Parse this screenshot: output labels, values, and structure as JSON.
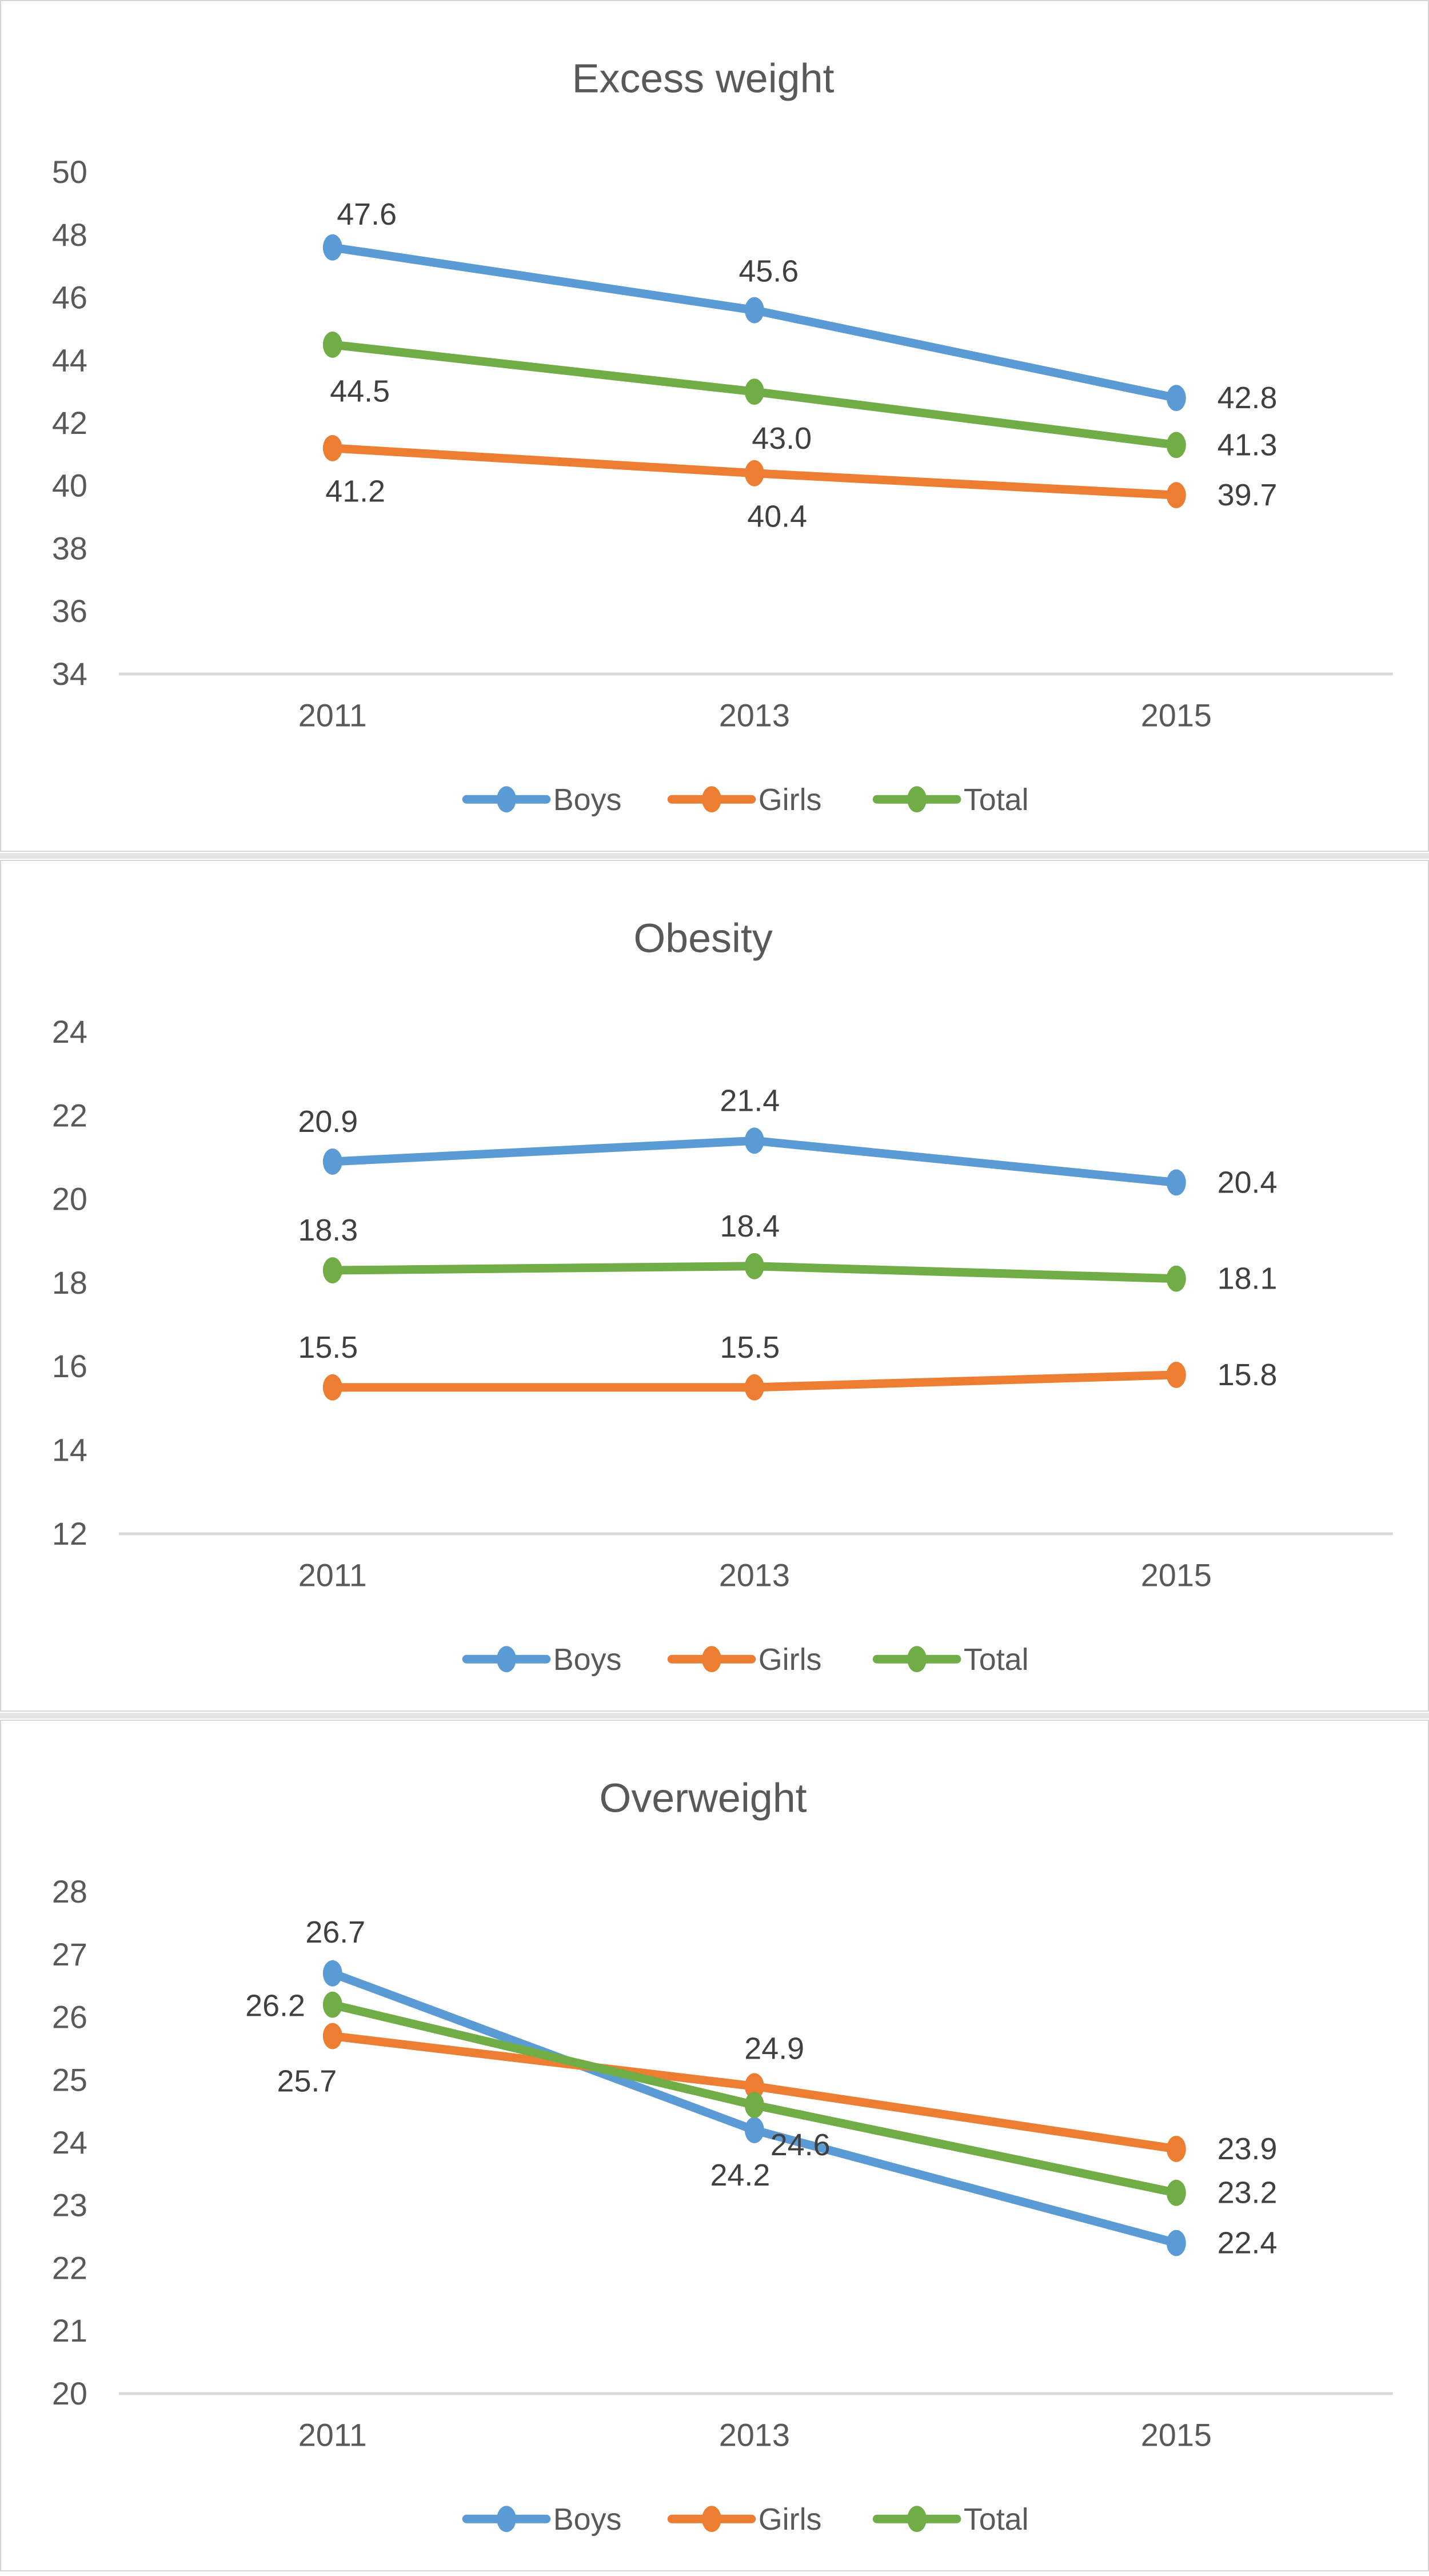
{
  "colors": {
    "boys": "#5B9BD5",
    "girls": "#ED7D31",
    "total": "#70AD47",
    "axis_text": "#595959",
    "data_label": "#404040",
    "axis_line": "#D9D9D9",
    "panel_border": "#D6D6D6"
  },
  "chart_data": [
    {
      "type": "line",
      "title": "Excess weight",
      "categories": [
        "2011",
        "2013",
        "2015"
      ],
      "series": [
        {
          "name": "Boys",
          "color_key": "boys",
          "values": [
            47.6,
            45.6,
            42.8
          ]
        },
        {
          "name": "Girls",
          "color_key": "girls",
          "values": [
            41.2,
            40.4,
            39.7
          ]
        },
        {
          "name": "Total",
          "color_key": "total",
          "values": [
            44.5,
            43.0,
            41.3
          ]
        }
      ],
      "data_labels": [
        "47.6",
        "45.6",
        "42.8",
        "41.2",
        "40.4",
        "39.7",
        "44.5",
        "43.0",
        "41.3"
      ],
      "xlabel": "",
      "ylabel": "",
      "ylim": [
        34,
        50
      ],
      "ytick_step": 2,
      "ytick_labels": [
        "50",
        "48",
        "46",
        "44",
        "42",
        "40",
        "38",
        "36",
        "34"
      ],
      "grid": false,
      "legend_position": "bottom",
      "legend_labels": [
        "Boys",
        "Girls",
        "Total"
      ]
    },
    {
      "type": "line",
      "title": "Obesity",
      "categories": [
        "2011",
        "2013",
        "2015"
      ],
      "series": [
        {
          "name": "Boys",
          "color_key": "boys",
          "values": [
            20.9,
            21.4,
            20.4
          ]
        },
        {
          "name": "Girls",
          "color_key": "girls",
          "values": [
            15.5,
            15.5,
            15.8
          ]
        },
        {
          "name": "Total",
          "color_key": "total",
          "values": [
            18.3,
            18.4,
            18.1
          ]
        }
      ],
      "data_labels": [
        "20.9",
        "21.4",
        "20.4",
        "15.5",
        "15.5",
        "15.8",
        "18.3",
        "18.4",
        "18.1"
      ],
      "xlabel": "",
      "ylabel": "",
      "ylim": [
        12,
        24
      ],
      "ytick_step": 2,
      "ytick_labels": [
        "24",
        "22",
        "20",
        "18",
        "16",
        "14",
        "12"
      ],
      "grid": false,
      "legend_position": "bottom",
      "legend_labels": [
        "Boys",
        "Girls",
        "Total"
      ]
    },
    {
      "type": "line",
      "title": "Overweight",
      "categories": [
        "2011",
        "2013",
        "2015"
      ],
      "series": [
        {
          "name": "Boys",
          "color_key": "boys",
          "values": [
            26.7,
            24.2,
            22.4
          ]
        },
        {
          "name": "Girls",
          "color_key": "girls",
          "values": [
            25.7,
            24.9,
            23.9
          ]
        },
        {
          "name": "Total",
          "color_key": "total",
          "values": [
            26.2,
            24.6,
            23.2
          ]
        }
      ],
      "data_labels": [
        "26.7",
        "24.2",
        "22.4",
        "25.7",
        "24.9",
        "23.9",
        "26.2",
        "24.6",
        "23.2"
      ],
      "xlabel": "",
      "ylabel": "",
      "ylim": [
        20,
        28
      ],
      "ytick_step": 1,
      "ytick_labels": [
        "28",
        "27",
        "26",
        "25",
        "24",
        "23",
        "22",
        "21",
        "20"
      ],
      "grid": false,
      "legend_position": "bottom",
      "legend_labels": [
        "Boys",
        "Girls",
        "Total"
      ]
    }
  ]
}
